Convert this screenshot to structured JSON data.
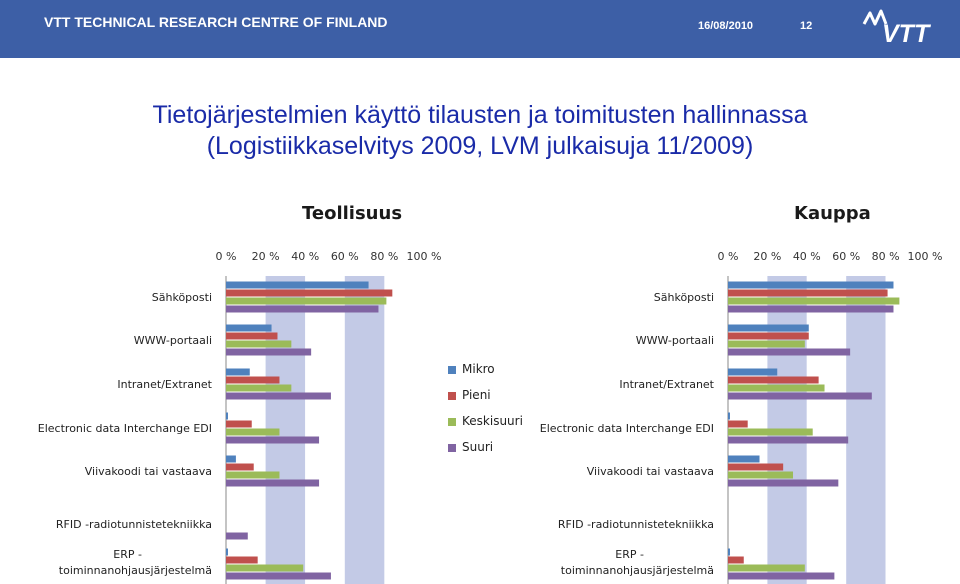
{
  "header": {
    "org": "VTT TECHNICAL RESEARCH CENTRE OF FINLAND",
    "date": "16/08/2010",
    "page": "12",
    "logo_text": "VTT"
  },
  "title": {
    "line1": "Tietojärjestelmien käyttö tilausten ja toimitusten hallinnassa",
    "line2": "(Logistiikkaselvitys 2009, LVM julkaisuja 11/2009)"
  },
  "colors": {
    "header_bg": "#3d5fa6",
    "title": "#1a2ba8",
    "plot_band": "#c3cae6",
    "series": [
      "#4f81bd",
      "#c0504d",
      "#9bbb59",
      "#8064a2"
    ]
  },
  "chart_data": [
    {
      "type": "bar",
      "orientation": "horizontal",
      "title": "Teollisuus",
      "categories": [
        "Sähköposti",
        "WWW-portaali",
        "Intranet/Extranet",
        "Electronic data Interchange EDI",
        "Viivakoodi tai vastaava",
        "RFID -radiotunnistetekniikka",
        "ERP - toiminnanohjausjärjestelmä"
      ],
      "xlim": [
        0,
        100
      ],
      "xticks": [
        "0 %",
        "20 %",
        "40 %",
        "60 %",
        "80 %",
        "100 %"
      ],
      "series": [
        {
          "name": "Mikro",
          "values": [
            72,
            23,
            12,
            1,
            5,
            0,
            1
          ]
        },
        {
          "name": "Pieni",
          "values": [
            84,
            26,
            27,
            13,
            14,
            0,
            16
          ]
        },
        {
          "name": "Keskisuuri",
          "values": [
            81,
            33,
            33,
            27,
            27,
            0,
            39
          ]
        },
        {
          "name": "Suuri",
          "values": [
            77,
            43,
            53,
            47,
            47,
            11,
            53
          ]
        }
      ]
    },
    {
      "type": "bar",
      "orientation": "horizontal",
      "title": "Kauppa",
      "categories": [
        "Sähköposti",
        "WWW-portaali",
        "Intranet/Extranet",
        "Electronic data Interchange EDI",
        "Viivakoodi tai vastaava",
        "RFID -radiotunnistetekniikka",
        "ERP - toiminnanohjausjärjestelmä"
      ],
      "xlim": [
        0,
        100
      ],
      "xticks": [
        "0 %",
        "20 %",
        "40 %",
        "60 %",
        "80 %",
        "100 %"
      ],
      "series": [
        {
          "name": "Mikro",
          "values": [
            84,
            41,
            25,
            1,
            16,
            0,
            1
          ]
        },
        {
          "name": "Pieni",
          "values": [
            81,
            41,
            46,
            10,
            28,
            0,
            8
          ]
        },
        {
          "name": "Keskisuuri",
          "values": [
            87,
            39,
            49,
            43,
            33,
            0,
            39
          ]
        },
        {
          "name": "Suuri",
          "values": [
            84,
            62,
            73,
            61,
            56,
            0,
            54
          ]
        }
      ]
    }
  ],
  "legend": [
    "Mikro",
    "Pieni",
    "Keskisuuri",
    "Suuri"
  ]
}
